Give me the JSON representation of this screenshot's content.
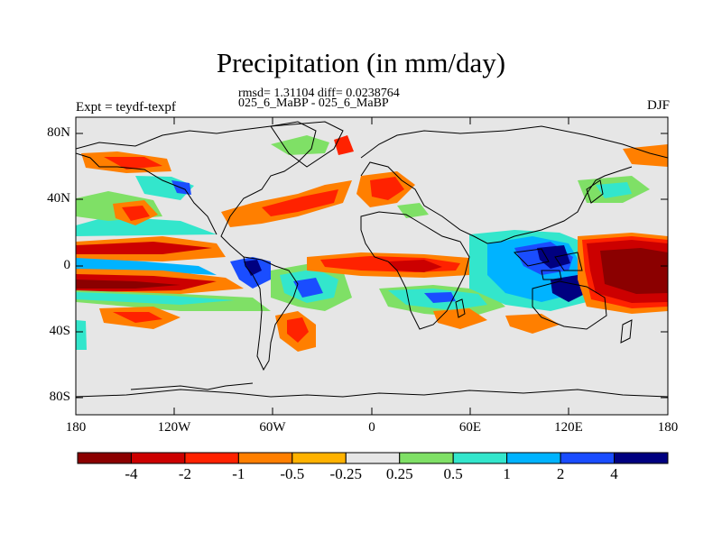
{
  "figure": {
    "title": "Precipitation (in mm/day)",
    "rmsd_line": "rmsd= 1.31104 diff= 0.0238764",
    "experiment_line": "025_6_MaBP - 025_6_MaBP",
    "left_label": "Expt = teydf-texpf",
    "right_label": "DJF"
  },
  "map": {
    "type": "filled-contour-world-map",
    "projection": "cylindrical-equidistant",
    "lon_range": [
      -180,
      180
    ],
    "lat_range": [
      -90,
      90
    ],
    "x_ticks": [
      "180",
      "120W",
      "60W",
      "0",
      "60E",
      "120E",
      "180"
    ],
    "y_ticks": [
      "80N",
      "40N",
      "0",
      "40S",
      "80S"
    ],
    "background_color": "#e6e6e6",
    "coastline_color": "#000000"
  },
  "colorbar": {
    "labels": [
      "-4",
      "-2",
      "-1",
      "-0.5",
      "-0.25",
      "0.25",
      "0.5",
      "1",
      "2",
      "4"
    ],
    "colors": [
      "#8b0000",
      "#cc0000",
      "#ff2200",
      "#ff7f00",
      "#ffb200",
      "#e6e6e6",
      "#7fe066",
      "#33e6cc",
      "#00b3ff",
      "#1a4dff",
      "#000080"
    ]
  }
}
